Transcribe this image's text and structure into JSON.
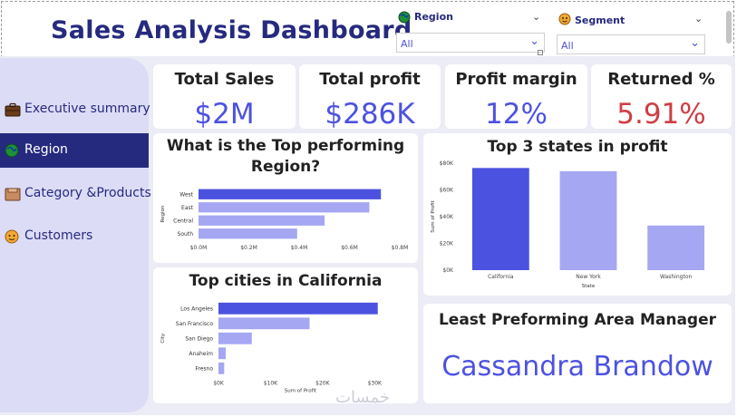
{
  "header": {
    "title": "Sales Analysis Dashboard"
  },
  "filters": [
    {
      "label": "Region",
      "value": "All",
      "icon": "globe-icon"
    },
    {
      "label": "Segment",
      "value": "All",
      "icon": "person-icon"
    }
  ],
  "nav": [
    {
      "label": "Executive summary",
      "icon": "briefcase-icon",
      "active": false
    },
    {
      "label": "Region",
      "icon": "globe-icon",
      "active": true
    },
    {
      "label": "Category &Products",
      "icon": "box-icon",
      "active": false
    },
    {
      "label": "Customers",
      "icon": "person-icon",
      "active": false
    }
  ],
  "kpis": [
    {
      "title": "Total Sales",
      "value": "$2M"
    },
    {
      "title": "Total profit",
      "value": "$286K"
    },
    {
      "title": "Profit margin",
      "value": "12%"
    },
    {
      "title": "Returned %",
      "value": "5.91%"
    }
  ],
  "colors": {
    "accent": "#4c52e0",
    "navy": "#262a7e",
    "bar_light": "#a5a7f2",
    "danger": "#cf3e45"
  },
  "manager": {
    "title": "Least Preforming Area Manager",
    "name": "Cassandra Brandow"
  },
  "watermark": "خمسات",
  "chart_data": [
    {
      "type": "bar",
      "orientation": "horizontal",
      "title_lines": [
        "What is the Top performing",
        "Region?"
      ],
      "categories": [
        "West",
        "East",
        "Central",
        "South"
      ],
      "values": [
        0.725,
        0.679,
        0.501,
        0.392
      ],
      "ylabel": "Region",
      "xticks": [
        "$0.0M",
        "$0.2M",
        "$0.4M",
        "$0.6M",
        "$0.8M"
      ],
      "xlim": [
        0,
        0.8
      ]
    },
    {
      "type": "bar",
      "orientation": "horizontal",
      "title": "Top cities in California",
      "categories": [
        "Los Angeles",
        "San Francisco",
        "San Diego",
        "Anaheim",
        "Fresno"
      ],
      "values": [
        30600,
        17500,
        6400,
        1400,
        1100
      ],
      "xlabel": "Sum of Profit",
      "ylabel": "City",
      "xticks": [
        "$0K",
        "$10K",
        "$20K",
        "$30K"
      ],
      "xlim": [
        0,
        35000
      ]
    },
    {
      "type": "bar",
      "orientation": "vertical",
      "title": "Top 3 states in profit",
      "categories": [
        "California",
        "New York",
        "Washington"
      ],
      "values": [
        76400,
        74000,
        33400
      ],
      "xlabel": "State",
      "ylabel": "Sum of Profit",
      "yticks": [
        "$0K",
        "$20K",
        "$40K",
        "$60K",
        "$80K"
      ],
      "ylim": [
        0,
        80000
      ]
    }
  ]
}
